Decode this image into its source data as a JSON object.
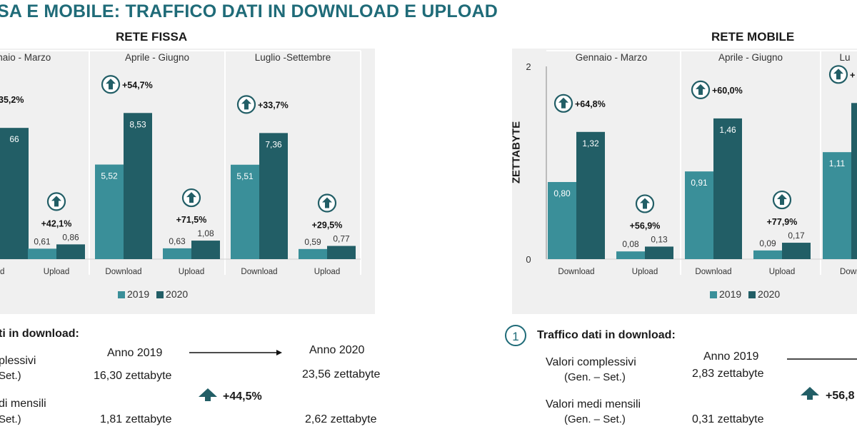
{
  "page_title": "SA E MOBILE: TRAFFICO DATI IN DOWNLOAD E UPLOAD",
  "colors": {
    "title": "#1f6b78",
    "c2019": "#3a8f99",
    "c2020": "#225e66",
    "panel": "#f0f0f0",
    "arrow": "#225e66"
  },
  "chart_data": [
    {
      "type": "bar",
      "title": "RETE FISSA",
      "periods": [
        "nnaio - Marzo",
        "Aprile - Giugno",
        "Luglio -Settembre"
      ],
      "categories": [
        "ad",
        "Upload",
        "Download",
        "Upload",
        "Download",
        "Upload"
      ],
      "series": [
        {
          "name": "2019",
          "values": [
            null,
            0.61,
            5.52,
            0.63,
            5.51,
            0.59
          ],
          "labels": [
            "",
            "0,61",
            "5,52",
            "0,63",
            "5,51",
            "0,59"
          ]
        },
        {
          "name": "2020",
          "values": [
            7.66,
            0.86,
            8.53,
            1.08,
            7.36,
            0.77
          ],
          "labels": [
            "66",
            "0,86",
            "8,53",
            "1,08",
            "7,36",
            "0,77"
          ]
        }
      ],
      "changes": [
        "35,2%",
        "+42,1%",
        "+54,7%",
        "+71,5%",
        "+33,7%",
        "+29,5%"
      ],
      "ylim": [
        0,
        10
      ],
      "legend": [
        "2019",
        "2020"
      ]
    },
    {
      "type": "bar",
      "title": "RETE MOBILE",
      "ylabel": "ZETTABYTE",
      "yticks": [
        "2",
        "0"
      ],
      "periods": [
        "Gennaio - Marzo",
        "Aprile - Giugno",
        "Lu"
      ],
      "categories": [
        "Download",
        "Upload",
        "Download",
        "Upload",
        "Downl"
      ],
      "series": [
        {
          "name": "2019",
          "values": [
            0.8,
            0.08,
            0.91,
            0.09,
            1.11
          ],
          "labels": [
            "0,80",
            "0,08",
            "0,91",
            "0,09",
            "1,11"
          ]
        },
        {
          "name": "2020",
          "values": [
            1.32,
            0.13,
            1.46,
            0.17,
            1.62
          ],
          "labels": [
            "1,32",
            "0,13",
            "1,46",
            "0,17",
            ""
          ]
        }
      ],
      "changes": [
        "+64,8%",
        "+56,9%",
        "+60,0%",
        "+77,9%",
        "+"
      ],
      "ylim": [
        0,
        2
      ],
      "legend": [
        "2019",
        "2020"
      ]
    }
  ],
  "left_summary": {
    "heading": "ti in download:",
    "year_2019": "Anno 2019",
    "year_2020": "Anno 2020",
    "row1_label": "plessivi",
    "row1_sub": "Set.)",
    "row1_v2019": "16,30 zettabyte",
    "row1_v2020": "23,56 zettabyte",
    "change": "+44,5%",
    "row2_label": "di mensili",
    "row2_sub": "Set.)",
    "row2_v2019": "1,81 zettabyte",
    "row2_v2020": "2,62 zettabyte"
  },
  "right_summary": {
    "number": "1",
    "heading": "Traffico dati in download:",
    "year_2019": "Anno 2019",
    "row1_label": "Valori complessivi",
    "row1_sub": "(Gen. – Set.)",
    "row1_v2019": "2,83 zettabyte",
    "change": "+56,8",
    "row2_label": "Valori medi mensili",
    "row2_sub": "(Gen. – Set.)",
    "row2_v2019": "0,31 zettabyte"
  }
}
